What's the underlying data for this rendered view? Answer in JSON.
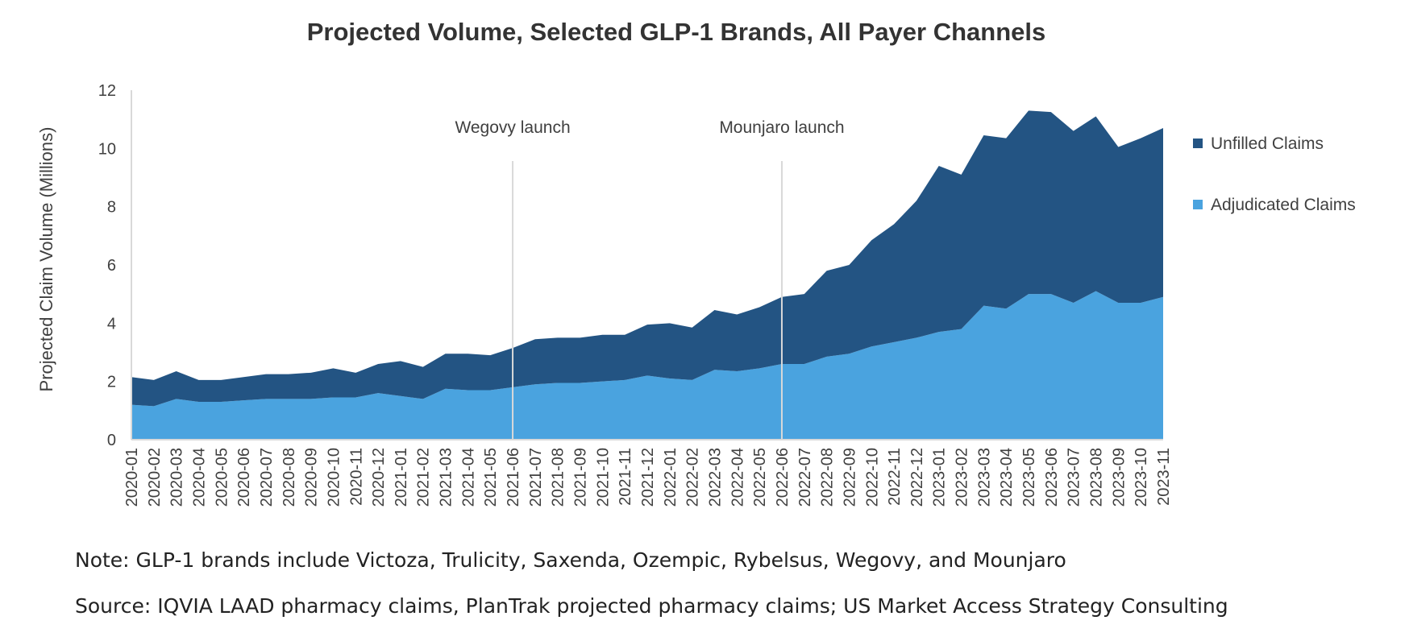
{
  "chart_data": {
    "type": "area",
    "stacked": true,
    "title": "Projected Volume, Selected GLP-1 Brands, All Payer Channels",
    "ylabel": "Projected Claim Volume (Millions)",
    "xlabel": "",
    "ylim": [
      0,
      12
    ],
    "yticks": [
      0,
      2,
      4,
      6,
      8,
      10,
      12
    ],
    "grid": false,
    "legend_position": "right",
    "x": [
      "2020-01",
      "2020-02",
      "2020-03",
      "2020-04",
      "2020-05",
      "2020-06",
      "2020-07",
      "2020-08",
      "2020-09",
      "2020-10",
      "2020-11",
      "2020-12",
      "2021-01",
      "2021-02",
      "2021-03",
      "2021-04",
      "2021-05",
      "2021-06",
      "2021-07",
      "2021-08",
      "2021-09",
      "2021-10",
      "2021-11",
      "2021-12",
      "2022-01",
      "2022-02",
      "2022-03",
      "2022-04",
      "2022-05",
      "2022-06",
      "2022-07",
      "2022-08",
      "2022-09",
      "2022-10",
      "2022-11",
      "2022-12",
      "2023-01",
      "2023-02",
      "2023-03",
      "2023-04",
      "2023-05",
      "2023-06",
      "2023-07",
      "2023-08",
      "2023-09",
      "2023-10",
      "2023-11"
    ],
    "series": [
      {
        "name": "Adjudicated Claims",
        "color": "#4aa3df",
        "values": [
          1.2,
          1.15,
          1.4,
          1.3,
          1.3,
          1.35,
          1.4,
          1.4,
          1.4,
          1.45,
          1.45,
          1.6,
          1.5,
          1.4,
          1.75,
          1.7,
          1.7,
          1.8,
          1.9,
          1.95,
          1.95,
          2.0,
          2.05,
          2.2,
          2.1,
          2.05,
          2.4,
          2.35,
          2.45,
          2.6,
          2.6,
          2.85,
          2.95,
          3.2,
          3.35,
          3.5,
          3.7,
          3.8,
          4.6,
          4.5,
          5.0,
          5.0,
          4.7,
          5.1,
          4.7,
          4.7,
          4.9
        ]
      },
      {
        "name": "Unfilled Claims",
        "color": "#235483",
        "values": [
          0.95,
          0.9,
          0.95,
          0.75,
          0.75,
          0.8,
          0.85,
          0.85,
          0.9,
          1.0,
          0.85,
          1.0,
          1.2,
          1.1,
          1.2,
          1.25,
          1.2,
          1.35,
          1.55,
          1.55,
          1.55,
          1.6,
          1.55,
          1.75,
          1.9,
          1.8,
          2.05,
          1.95,
          2.1,
          2.3,
          2.4,
          2.95,
          3.05,
          3.65,
          4.05,
          4.7,
          5.7,
          5.3,
          5.85,
          5.85,
          6.3,
          6.25,
          5.9,
          6.0,
          5.35,
          5.65,
          5.8
        ]
      }
    ],
    "annotations": [
      {
        "text": "Wegovy launch",
        "x": "2021-06"
      },
      {
        "text": "Mounjaro launch",
        "x": "2022-06"
      }
    ],
    "legend": [
      {
        "name": "Unfilled Claims",
        "color": "#235483"
      },
      {
        "name": "Adjudicated Claims",
        "color": "#4aa3df"
      }
    ]
  },
  "footnotes": {
    "note": "Note: GLP-1 brands include Victoza, Trulicity, Saxenda, Ozempic, Rybelsus, Wegovy, and Mounjaro",
    "source": "Source: IQVIA LAAD pharmacy claims, PlanTrak projected pharmacy claims; US Market Access Strategy Consulting"
  }
}
